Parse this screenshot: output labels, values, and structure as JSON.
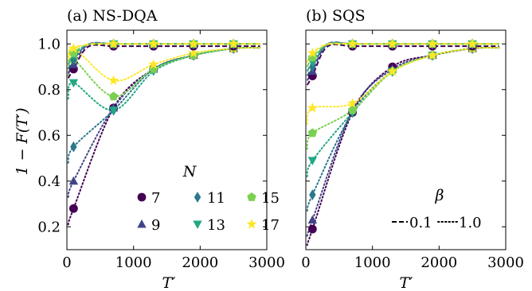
{
  "figure": {
    "ylabel": "1 − F(T′)",
    "legend_N_title": "N",
    "legend_beta_title": "β",
    "beta_entries": [
      {
        "label": "0.1",
        "style": "dashed"
      },
      {
        "label": "1.0",
        "style": "dotted"
      }
    ],
    "N_entries": [
      {
        "label": "7",
        "marker": "circle",
        "color": "#440154"
      },
      {
        "label": "9",
        "marker": "triangle",
        "color": "#414487"
      },
      {
        "label": "11",
        "marker": "diamond",
        "color": "#2a788e"
      },
      {
        "label": "13",
        "marker": "triangle-down",
        "color": "#22a884"
      },
      {
        "label": "15",
        "marker": "pentagon",
        "color": "#7ad151"
      },
      {
        "label": "17",
        "marker": "star",
        "color": "#fde725"
      }
    ]
  },
  "chart_data": [
    {
      "type": "scatter",
      "title": "(a) NS-DQA",
      "xlabel": "T′",
      "ylabel": "1 − F(T′)",
      "xlim": [
        0,
        3000
      ],
      "ylim": [
        0.1,
        1.06
      ],
      "xticks": [
        0,
        1000,
        2000,
        3000
      ],
      "yticks": [
        0.2,
        0.4,
        0.6,
        0.8,
        1.0
      ],
      "x": [
        100,
        700,
        1300,
        1900,
        2500
      ],
      "series": [
        {
          "name": "7",
          "beta": "1.0",
          "values": [
            0.28,
            0.72,
            0.89,
            0.95,
            0.98
          ]
        },
        {
          "name": "9",
          "beta": "1.0",
          "values": [
            0.4,
            0.72,
            0.89,
            0.95,
            0.98
          ]
        },
        {
          "name": "11",
          "beta": "1.0",
          "values": [
            0.55,
            0.71,
            0.89,
            0.95,
            0.98
          ]
        },
        {
          "name": "13",
          "beta": "1.0",
          "values": [
            0.83,
            0.71,
            0.88,
            0.95,
            0.98
          ]
        },
        {
          "name": "15",
          "beta": "1.0",
          "values": [
            0.93,
            0.77,
            0.89,
            0.95,
            0.98
          ]
        },
        {
          "name": "17",
          "beta": "1.0",
          "values": [
            0.98,
            0.84,
            0.91,
            0.96,
            0.98
          ]
        },
        {
          "name": "7",
          "beta": "0.1",
          "values": [
            0.89,
            0.99,
            0.99,
            0.99,
            0.99
          ]
        },
        {
          "name": "9",
          "beta": "0.1",
          "values": [
            0.91,
            1.0,
            1.0,
            1.0,
            1.0
          ]
        },
        {
          "name": "11",
          "beta": "0.1",
          "values": [
            0.93,
            1.0,
            1.0,
            1.0,
            1.0
          ]
        },
        {
          "name": "13",
          "beta": "0.1",
          "values": [
            0.95,
            1.0,
            1.0,
            1.0,
            1.0
          ]
        },
        {
          "name": "15",
          "beta": "0.1",
          "values": [
            0.96,
            1.0,
            1.0,
            1.0,
            1.0
          ]
        },
        {
          "name": "17",
          "beta": "0.1",
          "values": [
            0.98,
            1.0,
            1.0,
            1.0,
            1.0
          ]
        }
      ]
    },
    {
      "type": "scatter",
      "title": "(b) SQS",
      "xlabel": "T′",
      "xlim": [
        0,
        3000
      ],
      "ylim": [
        0.1,
        1.06
      ],
      "xticks": [
        0,
        1000,
        2000,
        3000
      ],
      "yticks": [
        0.2,
        0.4,
        0.6,
        0.8,
        1.0
      ],
      "x": [
        100,
        700,
        1300,
        1900,
        2500
      ],
      "series": [
        {
          "name": "7",
          "beta": "1.0",
          "values": [
            0.19,
            0.7,
            0.9,
            0.95,
            0.98
          ]
        },
        {
          "name": "9",
          "beta": "1.0",
          "values": [
            0.23,
            0.71,
            0.89,
            0.95,
            0.98
          ]
        },
        {
          "name": "11",
          "beta": "1.0",
          "values": [
            0.34,
            0.7,
            0.88,
            0.95,
            0.98
          ]
        },
        {
          "name": "13",
          "beta": "1.0",
          "values": [
            0.49,
            0.7,
            0.88,
            0.95,
            0.98
          ]
        },
        {
          "name": "15",
          "beta": "1.0",
          "values": [
            0.61,
            0.71,
            0.88,
            0.95,
            0.98
          ]
        },
        {
          "name": "17",
          "beta": "1.0",
          "values": [
            0.72,
            0.74,
            0.88,
            0.95,
            0.98
          ]
        },
        {
          "name": "7",
          "beta": "0.1",
          "values": [
            0.86,
            0.99,
            0.99,
            0.99,
            0.99
          ]
        },
        {
          "name": "9",
          "beta": "0.1",
          "values": [
            0.88,
            1.0,
            1.0,
            1.0,
            1.0
          ]
        },
        {
          "name": "11",
          "beta": "0.1",
          "values": [
            0.9,
            1.0,
            1.0,
            1.0,
            1.0
          ]
        },
        {
          "name": "13",
          "beta": "0.1",
          "values": [
            0.92,
            1.0,
            1.0,
            1.0,
            1.0
          ]
        },
        {
          "name": "15",
          "beta": "0.1",
          "values": [
            0.94,
            1.0,
            1.0,
            1.0,
            1.0
          ]
        },
        {
          "name": "17",
          "beta": "0.1",
          "values": [
            0.96,
            1.0,
            1.0,
            1.0,
            1.0
          ]
        }
      ]
    }
  ]
}
